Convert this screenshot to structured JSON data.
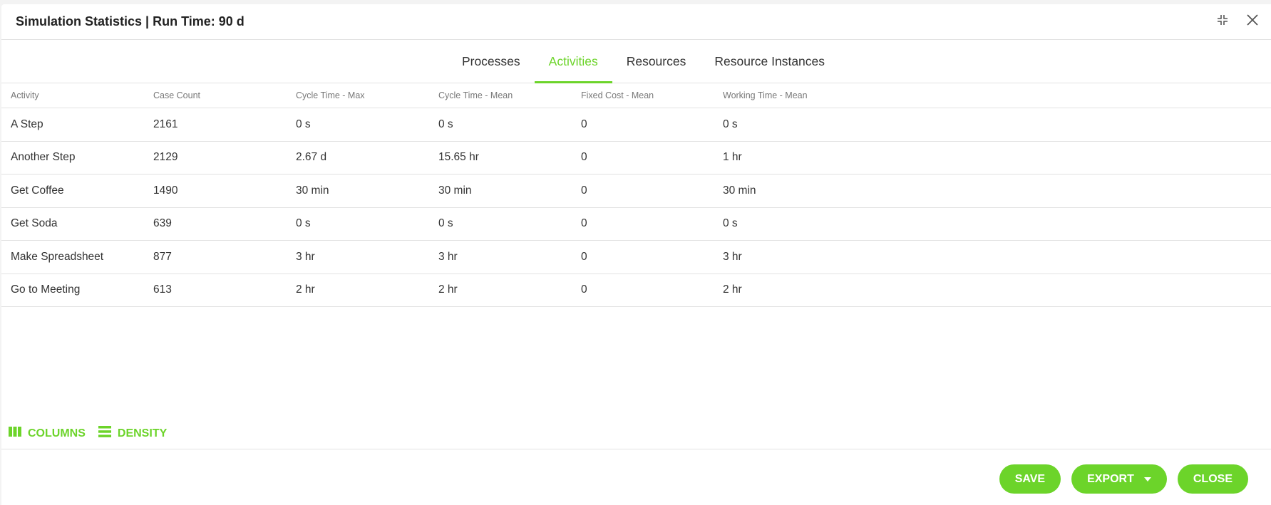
{
  "dialog": {
    "title": "Simulation Statistics | Run Time: 90 d"
  },
  "tabs": [
    {
      "label": "Processes"
    },
    {
      "label": "Activities",
      "active": true
    },
    {
      "label": "Resources"
    },
    {
      "label": "Resource Instances"
    }
  ],
  "table": {
    "columns": [
      "Activity",
      "Case Count",
      "Cycle Time - Max",
      "Cycle Time - Mean",
      "Fixed Cost - Mean",
      "Working Time - Mean"
    ],
    "rows": [
      [
        "A Step",
        "2161",
        "0 s",
        "0 s",
        "0",
        "0 s"
      ],
      [
        "Another Step",
        "2129",
        "2.67 d",
        "15.65 hr",
        "0",
        "1 hr"
      ],
      [
        "Get Coffee",
        "1490",
        "30 min",
        "30 min",
        "0",
        "30 min"
      ],
      [
        "Get Soda",
        "639",
        "0 s",
        "0 s",
        "0",
        "0 s"
      ],
      [
        "Make Spreadsheet",
        "877",
        "3 hr",
        "3 hr",
        "0",
        "3 hr"
      ],
      [
        "Go to Meeting",
        "613",
        "2 hr",
        "2 hr",
        "0",
        "2 hr"
      ]
    ]
  },
  "toolbar": {
    "columns_label": "COLUMNS",
    "density_label": "DENSITY"
  },
  "actions": {
    "save_label": "SAVE",
    "export_label": "EXPORT",
    "close_label": "CLOSE"
  },
  "colors": {
    "accent": "#6cd42a"
  }
}
